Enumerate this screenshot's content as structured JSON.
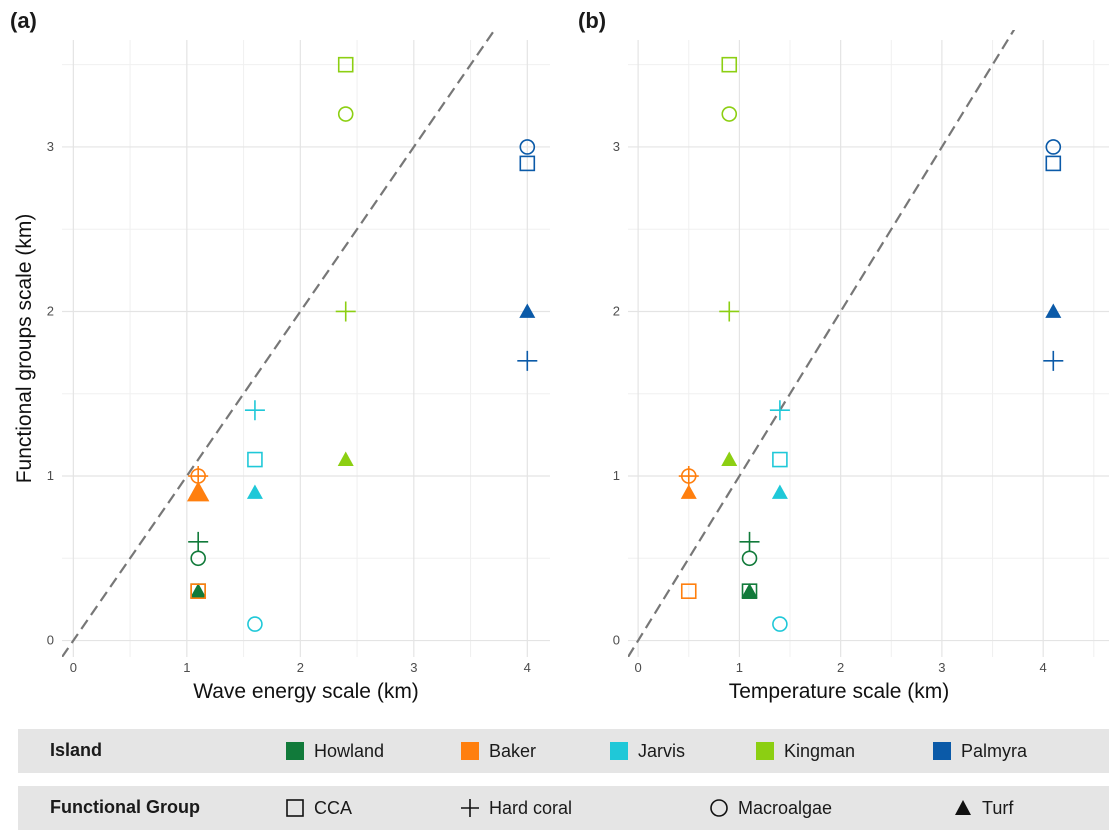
{
  "panels": [
    {
      "label": "(a)",
      "xlabel": "Wave energy scale (km)",
      "ylabel": "Functional groups scale (km)",
      "xticks": [
        "0",
        "1",
        "2",
        "3",
        "4"
      ],
      "yticks": [
        "0",
        "1",
        "2",
        "3"
      ]
    },
    {
      "label": "(b)",
      "xlabel": "Temperature scale (km)",
      "ylabel": "",
      "xticks": [
        "0",
        "1",
        "2",
        "3",
        "4"
      ],
      "yticks": [
        "0",
        "1",
        "2",
        "3"
      ]
    }
  ],
  "legend": {
    "island_title": "Island",
    "group_title": "Functional Group",
    "islands": [
      {
        "name": "Howland",
        "color": "#117a3a"
      },
      {
        "name": "Baker",
        "color": "#ff7f0e"
      },
      {
        "name": "Jarvis",
        "color": "#1fc8d8"
      },
      {
        "name": "Kingman",
        "color": "#8ccf12"
      },
      {
        "name": "Palmyra",
        "color": "#0b5aa8"
      }
    ],
    "groups": [
      {
        "name": "CCA",
        "shape": "square-open"
      },
      {
        "name": "Hard coral",
        "shape": "plus"
      },
      {
        "name": "Macroalgae",
        "shape": "circle-open"
      },
      {
        "name": "Turf",
        "shape": "triangle-filled"
      }
    ]
  },
  "chart_data": [
    {
      "type": "scatter",
      "title": "(a)",
      "xlabel": "Wave energy scale (km)",
      "ylabel": "Functional groups scale (km)",
      "xlim": [
        -0.1,
        4.2
      ],
      "ylim": [
        -0.1,
        3.65
      ],
      "grid": true,
      "reference_line": "y = x (dashed)",
      "points": [
        {
          "island": "Howland",
          "group": "CCA",
          "x": 1.1,
          "y": 0.3
        },
        {
          "island": "Howland",
          "group": "Hard coral",
          "x": 1.1,
          "y": 0.6
        },
        {
          "island": "Howland",
          "group": "Macroalgae",
          "x": 1.1,
          "y": 0.5
        },
        {
          "island": "Howland",
          "group": "Turf",
          "x": 1.1,
          "y": 0.3
        },
        {
          "island": "Baker",
          "group": "CCA",
          "x": 1.1,
          "y": 0.3
        },
        {
          "island": "Baker",
          "group": "Hard coral",
          "x": 1.1,
          "y": 1.0
        },
        {
          "island": "Baker",
          "group": "Macroalgae",
          "x": 1.1,
          "y": 1.0
        },
        {
          "island": "Baker",
          "group": "Turf",
          "x": 1.1,
          "y": 0.9
        },
        {
          "island": "Jarvis",
          "group": "CCA",
          "x": 1.6,
          "y": 1.1
        },
        {
          "island": "Jarvis",
          "group": "Hard coral",
          "x": 1.6,
          "y": 1.4
        },
        {
          "island": "Jarvis",
          "group": "Macroalgae",
          "x": 1.6,
          "y": 0.1
        },
        {
          "island": "Jarvis",
          "group": "Turf",
          "x": 1.6,
          "y": 0.9
        },
        {
          "island": "Kingman",
          "group": "CCA",
          "x": 2.4,
          "y": 3.5
        },
        {
          "island": "Kingman",
          "group": "Hard coral",
          "x": 2.4,
          "y": 2.0
        },
        {
          "island": "Kingman",
          "group": "Macroalgae",
          "x": 2.4,
          "y": 3.2
        },
        {
          "island": "Kingman",
          "group": "Turf",
          "x": 2.4,
          "y": 1.1
        },
        {
          "island": "Palmyra",
          "group": "CCA",
          "x": 4.0,
          "y": 2.9
        },
        {
          "island": "Palmyra",
          "group": "Hard coral",
          "x": 4.0,
          "y": 1.7
        },
        {
          "island": "Palmyra",
          "group": "Macroalgae",
          "x": 4.0,
          "y": 3.0
        },
        {
          "island": "Palmyra",
          "group": "Turf",
          "x": 4.0,
          "y": 2.0
        }
      ]
    },
    {
      "type": "scatter",
      "title": "(b)",
      "xlabel": "Temperature scale (km)",
      "ylabel": "Functional groups scale (km)",
      "xlim": [
        -0.1,
        4.65
      ],
      "ylim": [
        -0.1,
        3.65
      ],
      "grid": true,
      "reference_line": "y = x (dashed)",
      "points": [
        {
          "island": "Howland",
          "group": "CCA",
          "x": 1.1,
          "y": 0.3
        },
        {
          "island": "Howland",
          "group": "Hard coral",
          "x": 1.1,
          "y": 0.6
        },
        {
          "island": "Howland",
          "group": "Macroalgae",
          "x": 1.1,
          "y": 0.5
        },
        {
          "island": "Howland",
          "group": "Turf",
          "x": 1.1,
          "y": 0.3
        },
        {
          "island": "Baker",
          "group": "CCA",
          "x": 0.5,
          "y": 0.3
        },
        {
          "island": "Baker",
          "group": "Hard coral",
          "x": 0.5,
          "y": 1.0
        },
        {
          "island": "Baker",
          "group": "Macroalgae",
          "x": 0.5,
          "y": 1.0
        },
        {
          "island": "Baker",
          "group": "Turf",
          "x": 0.5,
          "y": 0.9
        },
        {
          "island": "Jarvis",
          "group": "CCA",
          "x": 1.4,
          "y": 1.1
        },
        {
          "island": "Jarvis",
          "group": "Hard coral",
          "x": 1.4,
          "y": 1.4
        },
        {
          "island": "Jarvis",
          "group": "Macroalgae",
          "x": 1.4,
          "y": 0.1
        },
        {
          "island": "Jarvis",
          "group": "Turf",
          "x": 1.4,
          "y": 0.9
        },
        {
          "island": "Kingman",
          "group": "CCA",
          "x": 0.9,
          "y": 3.5
        },
        {
          "island": "Kingman",
          "group": "Hard coral",
          "x": 0.9,
          "y": 2.0
        },
        {
          "island": "Kingman",
          "group": "Macroalgae",
          "x": 0.9,
          "y": 3.2
        },
        {
          "island": "Kingman",
          "group": "Turf",
          "x": 0.9,
          "y": 1.1
        },
        {
          "island": "Palmyra",
          "group": "CCA",
          "x": 4.1,
          "y": 2.9
        },
        {
          "island": "Palmyra",
          "group": "Hard coral",
          "x": 4.1,
          "y": 1.7
        },
        {
          "island": "Palmyra",
          "group": "Macroalgae",
          "x": 4.1,
          "y": 3.0
        },
        {
          "island": "Palmyra",
          "group": "Turf",
          "x": 4.1,
          "y": 2.0
        }
      ]
    }
  ]
}
